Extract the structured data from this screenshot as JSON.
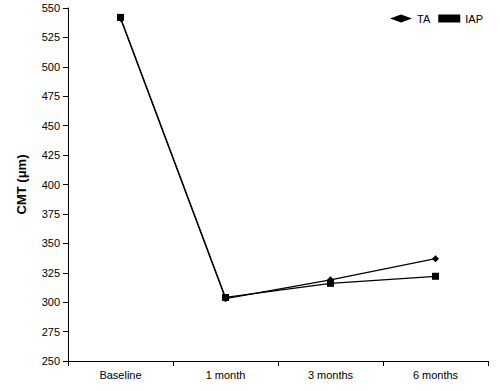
{
  "chart_data": {
    "type": "line",
    "ylabel": "CMT (μm)",
    "categories": [
      "Baseline",
      "1 month",
      "3 months",
      "6 months"
    ],
    "series": [
      {
        "name": "TA",
        "color": "#000000",
        "marker": "diamond",
        "line_style": "solid",
        "values": [
          541,
          303,
          319,
          337
        ]
      },
      {
        "name": "IAP",
        "color": "#000000",
        "marker": "square",
        "line_style": "solid",
        "values": [
          542,
          304,
          316,
          322
        ]
      }
    ],
    "ylim": [
      250,
      550
    ],
    "yticks": [
      250,
      275,
      300,
      325,
      350,
      375,
      400,
      425,
      450,
      475,
      500,
      525,
      550
    ],
    "grid": false,
    "legend": "upper right"
  }
}
